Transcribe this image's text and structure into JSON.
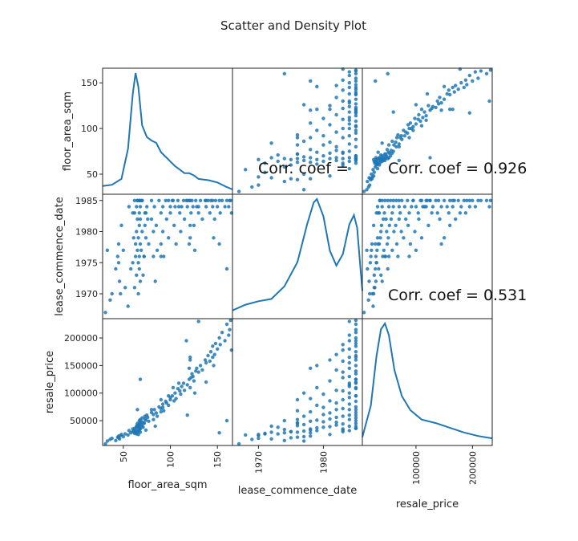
{
  "chart_data": {
    "type": "scatter",
    "title": "Scatter and Density Plot",
    "variables": [
      "floor_area_sqm",
      "lease_commence_date",
      "resale_price"
    ],
    "ranges": {
      "floor_area_sqm": [
        28,
        166
      ],
      "lease_commence_date": [
        1966,
        1986
      ],
      "resale_price": [
        5000,
        235000
      ]
    },
    "ticks": {
      "floor_area_sqm": [
        50,
        100,
        150
      ],
      "lease_commence_date": [
        1970,
        1975,
        1980,
        1985
      ],
      "lease_commence_date_x": [
        1970,
        1980
      ],
      "resale_price_y": [
        50000,
        100000,
        150000,
        200000
      ],
      "resale_price_x": [
        100000,
        200000
      ]
    },
    "correlations": [
      {
        "row": 0,
        "col": 1,
        "label": "Corr. coef = ",
        "value": ""
      },
      {
        "row": 0,
        "col": 2,
        "label": "Corr. coef = ",
        "value": "0.926"
      },
      {
        "row": 1,
        "col": 2,
        "label": "Corr. coef = ",
        "value": "0.531"
      }
    ],
    "densities": {
      "floor_area_sqm": [
        [
          28,
          0.03
        ],
        [
          38,
          0.04
        ],
        [
          48,
          0.09
        ],
        [
          55,
          0.35
        ],
        [
          60,
          0.82
        ],
        [
          63,
          1.0
        ],
        [
          66,
          0.88
        ],
        [
          70,
          0.55
        ],
        [
          75,
          0.45
        ],
        [
          80,
          0.42
        ],
        [
          85,
          0.4
        ],
        [
          90,
          0.32
        ],
        [
          95,
          0.28
        ],
        [
          100,
          0.24
        ],
        [
          105,
          0.2
        ],
        [
          110,
          0.17
        ],
        [
          115,
          0.14
        ],
        [
          120,
          0.14
        ],
        [
          125,
          0.12
        ],
        [
          130,
          0.09
        ],
        [
          140,
          0.08
        ],
        [
          150,
          0.06
        ],
        [
          160,
          0.02
        ],
        [
          166,
          0.0
        ]
      ],
      "lease_commence_date": [
        [
          1966,
          0.03
        ],
        [
          1968,
          0.08
        ],
        [
          1970,
          0.11
        ],
        [
          1972,
          0.13
        ],
        [
          1974,
          0.24
        ],
        [
          1976,
          0.45
        ],
        [
          1977.5,
          0.78
        ],
        [
          1978.5,
          0.97
        ],
        [
          1979,
          1.0
        ],
        [
          1980,
          0.85
        ],
        [
          1981,
          0.55
        ],
        [
          1982,
          0.42
        ],
        [
          1983,
          0.52
        ],
        [
          1984,
          0.78
        ],
        [
          1984.7,
          0.86
        ],
        [
          1985.2,
          0.75
        ],
        [
          1985.7,
          0.4
        ],
        [
          1986,
          0.2
        ]
      ],
      "resale_price": [
        [
          5000,
          0.03
        ],
        [
          20000,
          0.3
        ],
        [
          30000,
          0.72
        ],
        [
          38000,
          0.95
        ],
        [
          45000,
          1.0
        ],
        [
          52000,
          0.9
        ],
        [
          62000,
          0.6
        ],
        [
          75000,
          0.38
        ],
        [
          90000,
          0.26
        ],
        [
          110000,
          0.18
        ],
        [
          135000,
          0.15
        ],
        [
          160000,
          0.11
        ],
        [
          185000,
          0.07
        ],
        [
          210000,
          0.04
        ],
        [
          235000,
          0.02
        ]
      ]
    },
    "points": {
      "floor_area_sqm": [
        31,
        33,
        36,
        38,
        42,
        44,
        45,
        46,
        45,
        47,
        48,
        50,
        52,
        55,
        58,
        60,
        60,
        61,
        62,
        62,
        63,
        63,
        64,
        64,
        64,
        65,
        65,
        65,
        66,
        66,
        66,
        67,
        67,
        67,
        67,
        67,
        68,
        68,
        68,
        68,
        69,
        70,
        70,
        71,
        72,
        73,
        73,
        74,
        75,
        76,
        77,
        80,
        82,
        82,
        83,
        85,
        86,
        88,
        90,
        90,
        92,
        92,
        93,
        95,
        96,
        98,
        100,
        100,
        102,
        104,
        105,
        106,
        108,
        110,
        111,
        112,
        114,
        115,
        118,
        120,
        121,
        122,
        123,
        124,
        125,
        127,
        128,
        130,
        132,
        134,
        137,
        138,
        140,
        142,
        143,
        145,
        145,
        147,
        148,
        150,
        152,
        153,
        155,
        158,
        160,
        162,
        163,
        164,
        165,
        146,
        138,
        126,
        118,
        84,
        72,
        56,
        160,
        152,
        130,
        117,
        121,
        103,
        68,
        65,
        74,
        67,
        121,
        120,
        109,
        98,
        90,
        80,
        70,
        62
      ],
      "lease_commence_date": [
        1967,
        1977,
        1969,
        1970,
        1974,
        1976,
        1978,
        1972,
        1975,
        1970,
        1981,
        1977,
        1971,
        1968,
        1974,
        1983,
        1975,
        1979,
        1971,
        1985,
        1976,
        1978,
        1984,
        1973,
        1980,
        1982,
        1977,
        1985,
        1970,
        1975,
        1979,
        1983,
        1981,
        1974,
        1976,
        1985,
        1978,
        1972,
        1982,
        1984,
        1977,
        1980,
        1985,
        1973,
        1976,
        1981,
        1983,
        1979,
        1984,
        1982,
        1978,
        1985,
        1976,
        1980,
        1984,
        1981,
        1977,
        1985,
        1983,
        1978,
        1984,
        1980,
        1976,
        1985,
        1982,
        1979,
        1984,
        1983,
        1985,
        1981,
        1984,
        1978,
        1985,
        1983,
        1980,
        1984,
        1985,
        1982,
        1984,
        1985,
        1979,
        1983,
        1985,
        1984,
        1981,
        1985,
        1984,
        1983,
        1985,
        1982,
        1985,
        1984,
        1985,
        1983,
        1985,
        1984,
        1985,
        1982,
        1985,
        1984,
        1985,
        1983,
        1985,
        1984,
        1985,
        1984,
        1985,
        1985,
        1983,
        1979,
        1985,
        1977,
        1985,
        1972,
        1976,
        1984,
        1974,
        1978,
        1984,
        1985,
        1985,
        1985,
        1985,
        1985,
        1983,
        1985,
        1981,
        1978,
        1984,
        1985,
        1976,
        1982,
        1985,
        1983
      ],
      "resale_price": [
        8000,
        13000,
        16000,
        18000,
        14000,
        20000,
        22000,
        17000,
        19000,
        23000,
        25000,
        21000,
        26000,
        24000,
        28000,
        35000,
        30000,
        32000,
        27000,
        36000,
        29000,
        33000,
        40000,
        26000,
        38000,
        42000,
        31000,
        45000,
        25000,
        30000,
        37000,
        44000,
        39000,
        34000,
        41000,
        50000,
        35000,
        29000,
        47000,
        52000,
        43000,
        48000,
        55000,
        38000,
        46000,
        53000,
        58000,
        51000,
        60000,
        56000,
        49000,
        65000,
        52000,
        61000,
        70000,
        64000,
        58000,
        75000,
        72000,
        66000,
        80000,
        74000,
        68000,
        85000,
        82000,
        78000,
        92000,
        88000,
        95000,
        86000,
        100000,
        90000,
        108000,
        104000,
        98000,
        112000,
        118000,
        105000,
        115000,
        125000,
        110000,
        128000,
        135000,
        130000,
        122000,
        140000,
        145000,
        138000,
        150000,
        142000,
        160000,
        155000,
        168000,
        158000,
        175000,
        165000,
        185000,
        170000,
        190000,
        180000,
        200000,
        188000,
        210000,
        195000,
        225000,
        205000,
        215000,
        232000,
        178000,
        150000,
        120000,
        100000,
        60000,
        40000,
        45000,
        32000,
        50000,
        28000,
        230000,
        195000,
        165000,
        110000,
        125000,
        70000,
        33000,
        36000,
        160000,
        145000,
        118000,
        95000,
        88000,
        70000,
        40000,
        30000
      ]
    }
  }
}
